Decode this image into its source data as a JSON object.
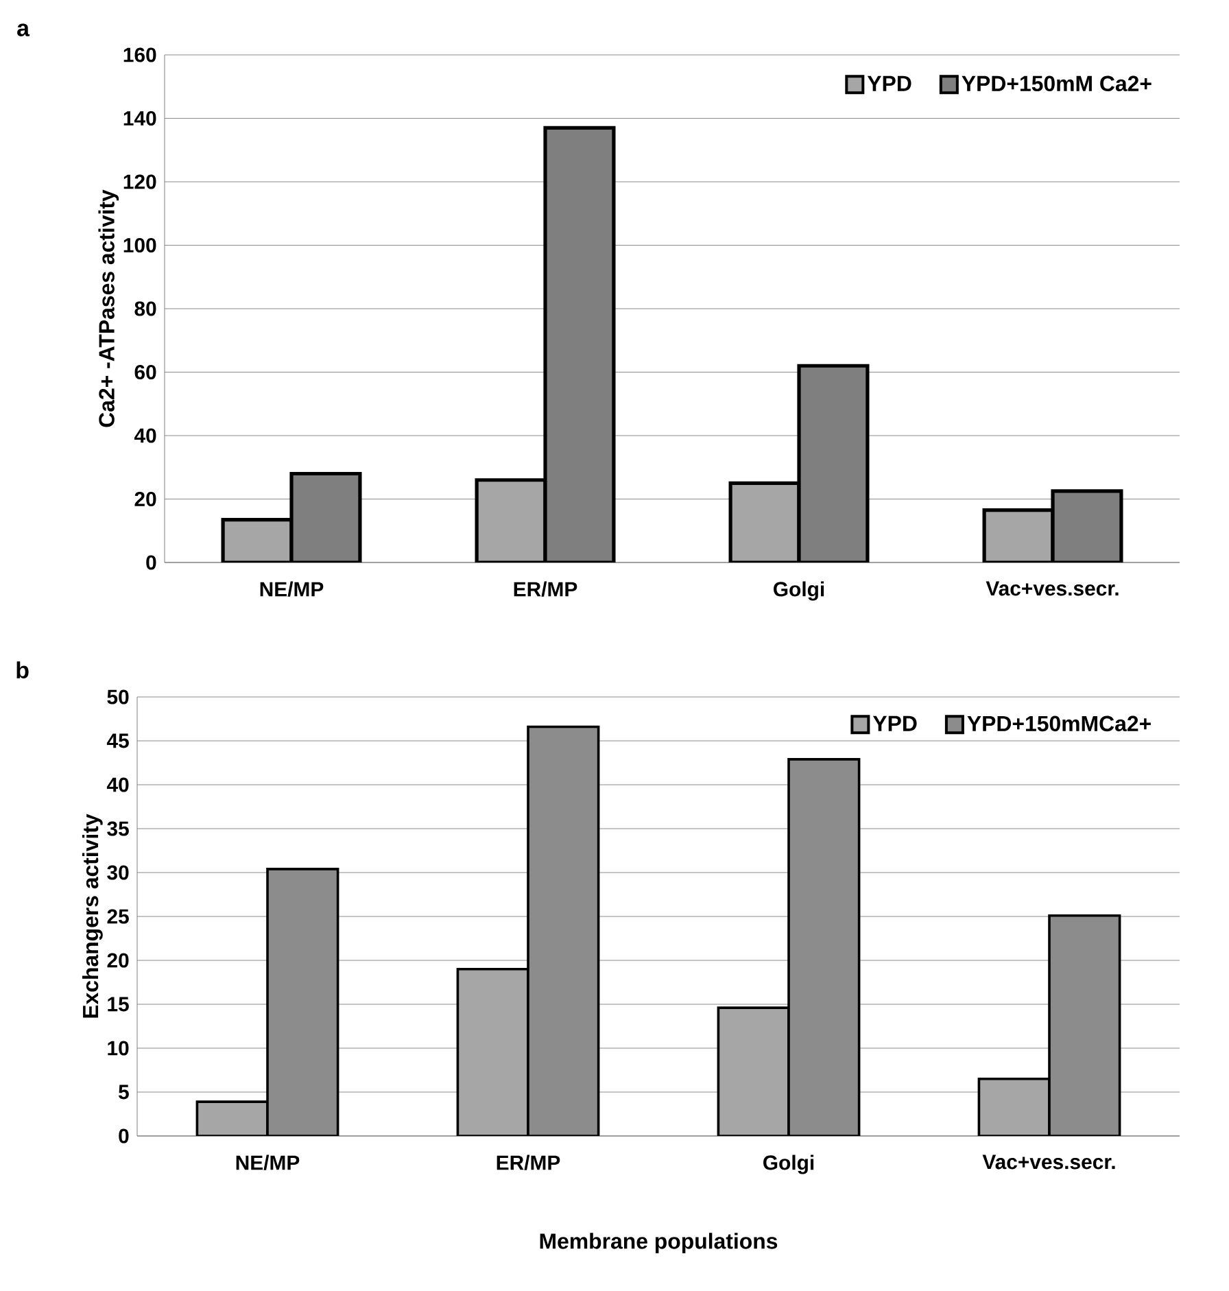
{
  "chart_data": [
    {
      "type": "bar",
      "title": "a",
      "ylabel": "Ca2+ -ATPases  activity",
      "categories": [
        "NE/MP",
        "ER/MP",
        "Golgi",
        "Vac+ves.secr."
      ],
      "series": [
        {
          "name": "YPD",
          "color": "#a6a6a6",
          "values": [
            13.5,
            26,
            25,
            16.5
          ]
        },
        {
          "name": "YPD+150mM Ca2+",
          "color": "#7f7f7f",
          "values": [
            28,
            137,
            62,
            22.5
          ]
        }
      ],
      "ylim": [
        0,
        160
      ],
      "yticks": [
        0,
        20,
        40,
        60,
        80,
        100,
        120,
        140,
        160
      ],
      "grid": "y",
      "legend": "top right"
    },
    {
      "type": "bar",
      "title": "b",
      "ylabel": "Exchangers activity",
      "xlabel": "Membrane populations",
      "categories": [
        "NE/MP",
        "ER/MP",
        "Golgi",
        "Vac+ves.secr."
      ],
      "series": [
        {
          "name": "YPD",
          "color": "#a6a6a6",
          "values": [
            3.9,
            19,
            14.6,
            6.5
          ]
        },
        {
          "name": "YPD+150mMCa2+",
          "color": "#8c8c8c",
          "values": [
            30.4,
            46.6,
            42.9,
            25.1
          ]
        }
      ],
      "ylim": [
        0,
        50
      ],
      "yticks": [
        0,
        5,
        10,
        15,
        20,
        25,
        30,
        35,
        40,
        45,
        50
      ],
      "grid": "y",
      "legend": "top right"
    }
  ]
}
